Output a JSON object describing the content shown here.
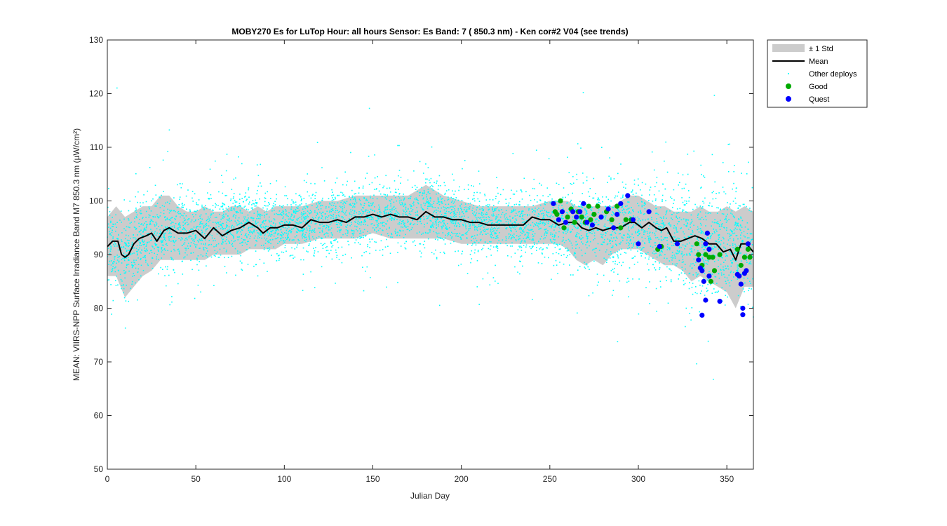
{
  "chart_data": {
    "type": "scatter",
    "title": "MOBY270   Es for LuTop  Hour: all hours  Sensor: Es Band: 7 ( 850.3 nm)  - Ken cor#2 V04 (see trends)",
    "xlabel": "Julian Day",
    "ylabel": "MEAN: VIIRS-NPP Surface Irradiance Band M7 850.3 nm (µW/cm²)",
    "xlim": [
      0,
      365
    ],
    "ylim": [
      50,
      130
    ],
    "x_ticks": [
      0,
      50,
      100,
      150,
      200,
      250,
      300,
      350
    ],
    "y_ticks": [
      50,
      60,
      70,
      80,
      90,
      100,
      110,
      120,
      130
    ],
    "grid": false,
    "legend_position": "outside-top-right",
    "colors": {
      "std_band": "#cccccc",
      "mean": "#000000",
      "other": "#00ffff",
      "good": "#00aa00",
      "quest": "#0000ff"
    },
    "series": [
      {
        "name": "± 1 Std",
        "kind": "band",
        "x": [
          0,
          5,
          10,
          15,
          20,
          25,
          30,
          35,
          40,
          45,
          50,
          55,
          60,
          65,
          70,
          75,
          80,
          85,
          90,
          95,
          100,
          110,
          120,
          130,
          140,
          150,
          160,
          170,
          180,
          190,
          200,
          210,
          220,
          230,
          240,
          250,
          255,
          260,
          265,
          270,
          275,
          280,
          285,
          290,
          295,
          300,
          305,
          310,
          315,
          320,
          325,
          330,
          335,
          340,
          345,
          350,
          355,
          360,
          365
        ],
        "upper": [
          97,
          99,
          97,
          98,
          99,
          99,
          101,
          101,
          99,
          98,
          98,
          99,
          98,
          98,
          99,
          99,
          98,
          99,
          98,
          99,
          99,
          99,
          100,
          100,
          101,
          101,
          101,
          101,
          103,
          101,
          100,
          99,
          99,
          99,
          99,
          100,
          100,
          100,
          99,
          99,
          99,
          99,
          99,
          100,
          101,
          101,
          100,
          99,
          99,
          98,
          98,
          98,
          99,
          98,
          98,
          99,
          98,
          99,
          98
        ],
        "lower": [
          86,
          86,
          82,
          84,
          86,
          87,
          89,
          89,
          89,
          89,
          89,
          89,
          90,
          90,
          90,
          90,
          91,
          91,
          91,
          91,
          92,
          92,
          93,
          93,
          93,
          94,
          93,
          93,
          93,
          93,
          92,
          92,
          92,
          92,
          92,
          92,
          92,
          91,
          89,
          88,
          89,
          88,
          90,
          91,
          91,
          91,
          90,
          89,
          88,
          88,
          87,
          85,
          86,
          85,
          84,
          83,
          80,
          84,
          84
        ]
      },
      {
        "name": "Mean",
        "kind": "line",
        "x": [
          0,
          3,
          6,
          8,
          10,
          12,
          15,
          18,
          22,
          25,
          28,
          32,
          35,
          40,
          45,
          50,
          55,
          60,
          65,
          70,
          75,
          80,
          85,
          88,
          92,
          96,
          100,
          105,
          110,
          115,
          120,
          125,
          130,
          135,
          140,
          145,
          150,
          155,
          160,
          165,
          170,
          175,
          180,
          185,
          190,
          195,
          200,
          205,
          210,
          215,
          220,
          225,
          230,
          235,
          240,
          245,
          250,
          255,
          260,
          265,
          268,
          272,
          276,
          280,
          285,
          290,
          295,
          298,
          302,
          306,
          310,
          313,
          316,
          320,
          324,
          328,
          332,
          336,
          340,
          344,
          348,
          352,
          355,
          358,
          361,
          365
        ],
        "y": [
          91.5,
          92.5,
          92.5,
          90,
          89.5,
          90,
          92,
          93,
          93.5,
          94,
          92.5,
          94.5,
          95,
          94,
          94,
          94.5,
          93,
          95,
          93.5,
          94.5,
          95,
          96,
          95,
          94,
          95,
          95,
          95.5,
          95.5,
          95,
          96.5,
          96,
          96,
          96.5,
          96,
          97,
          97,
          97.5,
          97,
          97.5,
          97,
          97,
          96.5,
          98,
          97,
          97,
          96.5,
          96.5,
          96,
          96,
          95.5,
          95.5,
          95.5,
          95.5,
          95.5,
          97,
          96.5,
          96.5,
          95.5,
          96,
          96,
          95,
          94.5,
          95,
          94.5,
          95,
          95,
          96,
          96,
          95,
          96,
          95,
          94.5,
          95,
          92.5,
          92.5,
          93,
          93.5,
          93,
          92,
          92,
          90.5,
          91,
          89,
          92,
          92,
          90.5
        ]
      },
      {
        "name": "Other deploys",
        "kind": "scatter-dense",
        "envelope_x": [
          0,
          10,
          20,
          40,
          60,
          80,
          100,
          120,
          140,
          160,
          180,
          200,
          220,
          240,
          260,
          280,
          300,
          320,
          340,
          360,
          365
        ],
        "center_y": [
          91.5,
          89.5,
          93,
          94.5,
          95,
          96,
          95.5,
          96,
          97,
          97.5,
          98,
          96.5,
          95.5,
          95.5,
          96,
          95,
          95,
          93,
          92,
          92,
          90.5
        ],
        "spread_y": [
          4.5,
          5,
          4.5,
          4,
          3.5,
          3.5,
          3.5,
          3.5,
          3.5,
          3.5,
          4,
          3.5,
          3.5,
          3.5,
          4.5,
          5,
          5,
          5.5,
          6,
          6,
          6
        ]
      },
      {
        "name": "Good",
        "kind": "scatter",
        "points": [
          [
            253,
            98
          ],
          [
            254,
            97.5
          ],
          [
            256,
            100
          ],
          [
            258,
            95
          ],
          [
            260,
            97
          ],
          [
            262,
            98.5
          ],
          [
            264,
            96
          ],
          [
            266,
            98
          ],
          [
            268,
            97
          ],
          [
            270,
            96
          ],
          [
            272,
            99
          ],
          [
            273,
            96.5
          ],
          [
            275,
            97.5
          ],
          [
            277,
            99
          ],
          [
            282,
            98
          ],
          [
            285,
            96.5
          ],
          [
            288,
            99
          ],
          [
            290,
            95
          ],
          [
            293,
            96.5
          ],
          [
            296,
            96.5
          ],
          [
            311,
            91
          ],
          [
            313,
            91.5
          ],
          [
            333,
            92
          ],
          [
            334,
            90
          ],
          [
            336,
            88
          ],
          [
            338,
            90
          ],
          [
            340,
            89.5
          ],
          [
            341,
            85
          ],
          [
            342,
            89.5
          ],
          [
            343,
            87
          ],
          [
            346,
            90
          ],
          [
            356,
            91
          ],
          [
            358,
            88
          ],
          [
            360,
            89.5
          ],
          [
            362,
            91
          ],
          [
            363,
            89.5
          ]
        ]
      },
      {
        "name": "Quest",
        "kind": "scatter",
        "points": [
          [
            252,
            99.5
          ],
          [
            255,
            96.5
          ],
          [
            257,
            98
          ],
          [
            259,
            96
          ],
          [
            263,
            98
          ],
          [
            265,
            97
          ],
          [
            267,
            98
          ],
          [
            269,
            99.5
          ],
          [
            271,
            96
          ],
          [
            274,
            95.5
          ],
          [
            279,
            97
          ],
          [
            283,
            98.5
          ],
          [
            286,
            95
          ],
          [
            288,
            97.5
          ],
          [
            290,
            99.5
          ],
          [
            294,
            101
          ],
          [
            297,
            96.5
          ],
          [
            300,
            92
          ],
          [
            306,
            98
          ],
          [
            312,
            91.5
          ],
          [
            322,
            92
          ],
          [
            334,
            89
          ],
          [
            335,
            87.5
          ],
          [
            336,
            87
          ],
          [
            337,
            85
          ],
          [
            338,
            81.5
          ],
          [
            336,
            78.7
          ],
          [
            340,
            86
          ],
          [
            339,
            94
          ],
          [
            338,
            92
          ],
          [
            340,
            91
          ],
          [
            346,
            81.3
          ],
          [
            356,
            86.3
          ],
          [
            357,
            86
          ],
          [
            358,
            84.5
          ],
          [
            359,
            80
          ],
          [
            359,
            78.8
          ],
          [
            360,
            86.5
          ],
          [
            361,
            87
          ],
          [
            362,
            92
          ]
        ]
      }
    ]
  }
}
